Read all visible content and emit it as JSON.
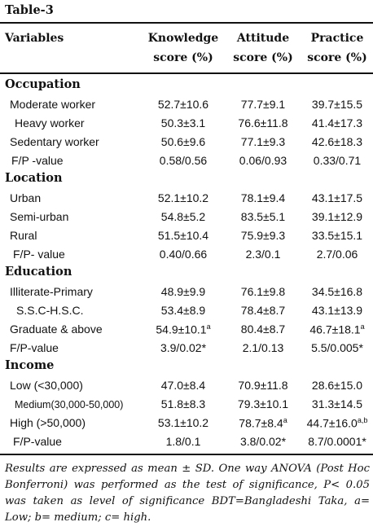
{
  "title": "Table-3",
  "headers": {
    "variables": "Variables",
    "knowledge": [
      "Knowledge",
      "score (%)"
    ],
    "attitude": [
      "Attitude",
      "score (%)"
    ],
    "practice": [
      "Practice",
      "score (%)"
    ]
  },
  "sections": [
    {
      "title": "Occupation",
      "rows": [
        {
          "label": "Moderate worker",
          "k": "52.7±10.6",
          "a": "77.7±9.1",
          "p": "39.7±15.5"
        },
        {
          "label": "Heavy worker",
          "k": "50.3±3.1",
          "a": "76.6±11.8",
          "p": "41.4±17.3"
        },
        {
          "label": "Sedentary worker",
          "k": "50.6±9.6",
          "a": "77.1±9.3",
          "p": "42.6±18.3"
        },
        {
          "label": "F/P -value",
          "k": "0.58/0.56",
          "a": "0.06/0.93",
          "p": "0.33/0.71"
        }
      ]
    },
    {
      "title": "Location",
      "rows": [
        {
          "label": "Urban",
          "k": "52.1±10.2",
          "a": "78.1±9.4",
          "p": "43.1±17.5"
        },
        {
          "label": "Semi-urban",
          "k": "54.8±5.2",
          "a": "83.5±5.1",
          "p": "39.1±12.9"
        },
        {
          "label": "Rural",
          "k": "51.5±10.4",
          "a": "75.9±9.3",
          "p": "33.5±15.1"
        },
        {
          "label": "F/P- value",
          "k": "0.40/0.66",
          "a": "2.3/0.1",
          "p": "2.7/0.06"
        }
      ]
    },
    {
      "title": "Education",
      "rows": [
        {
          "label": "Illiterate-Primary",
          "k": "48.9±9.9",
          "a": "76.1±9.8",
          "p": "34.5±16.8"
        },
        {
          "label": "S.S.C-H.S.C.",
          "k": "53.4±8.9",
          "a": "78.4±8.7",
          "p": "43.1±13.9"
        },
        {
          "label": "Graduate & above",
          "k": "54.9±10.1",
          "k_sup": "a",
          "a": "80.4±8.7",
          "p": "46.7±18.1",
          "p_sup": "a"
        },
        {
          "label": "F/P-value",
          "k": "3.9/0.02*",
          "a": "2.1/0.13",
          "p": "5.5/0.005*"
        }
      ]
    },
    {
      "title": "Income",
      "rows": [
        {
          "label": "Low (<30,000)",
          "k": "47.0±8.4",
          "a": "70.9±11.8",
          "p": "28.6±15.0"
        },
        {
          "label": "Medium(30,000-50,000)",
          "k": "51.8±8.3",
          "a": "79.3±10.1",
          "p": "31.3±14.5"
        },
        {
          "label": "High (>50,000)",
          "k": "53.1±10.2",
          "a": "78.7±8.4",
          "a_sup": "a",
          "p": "44.7±16.0",
          "p_sup": "a,b"
        },
        {
          "label": "F/P-value",
          "k": "1.8/0.1",
          "a": "3.8/0.02*",
          "p": "8.7/0.0001*"
        }
      ]
    }
  ],
  "footnote": "Results are expressed as mean ± SD. One way ANOVA (Post Hoc Bonferroni) was performed as the test of significance, P< 0.05 was taken as level of significance BDT=Bangladeshi Taka, a= Low; b= medium; c= high."
}
